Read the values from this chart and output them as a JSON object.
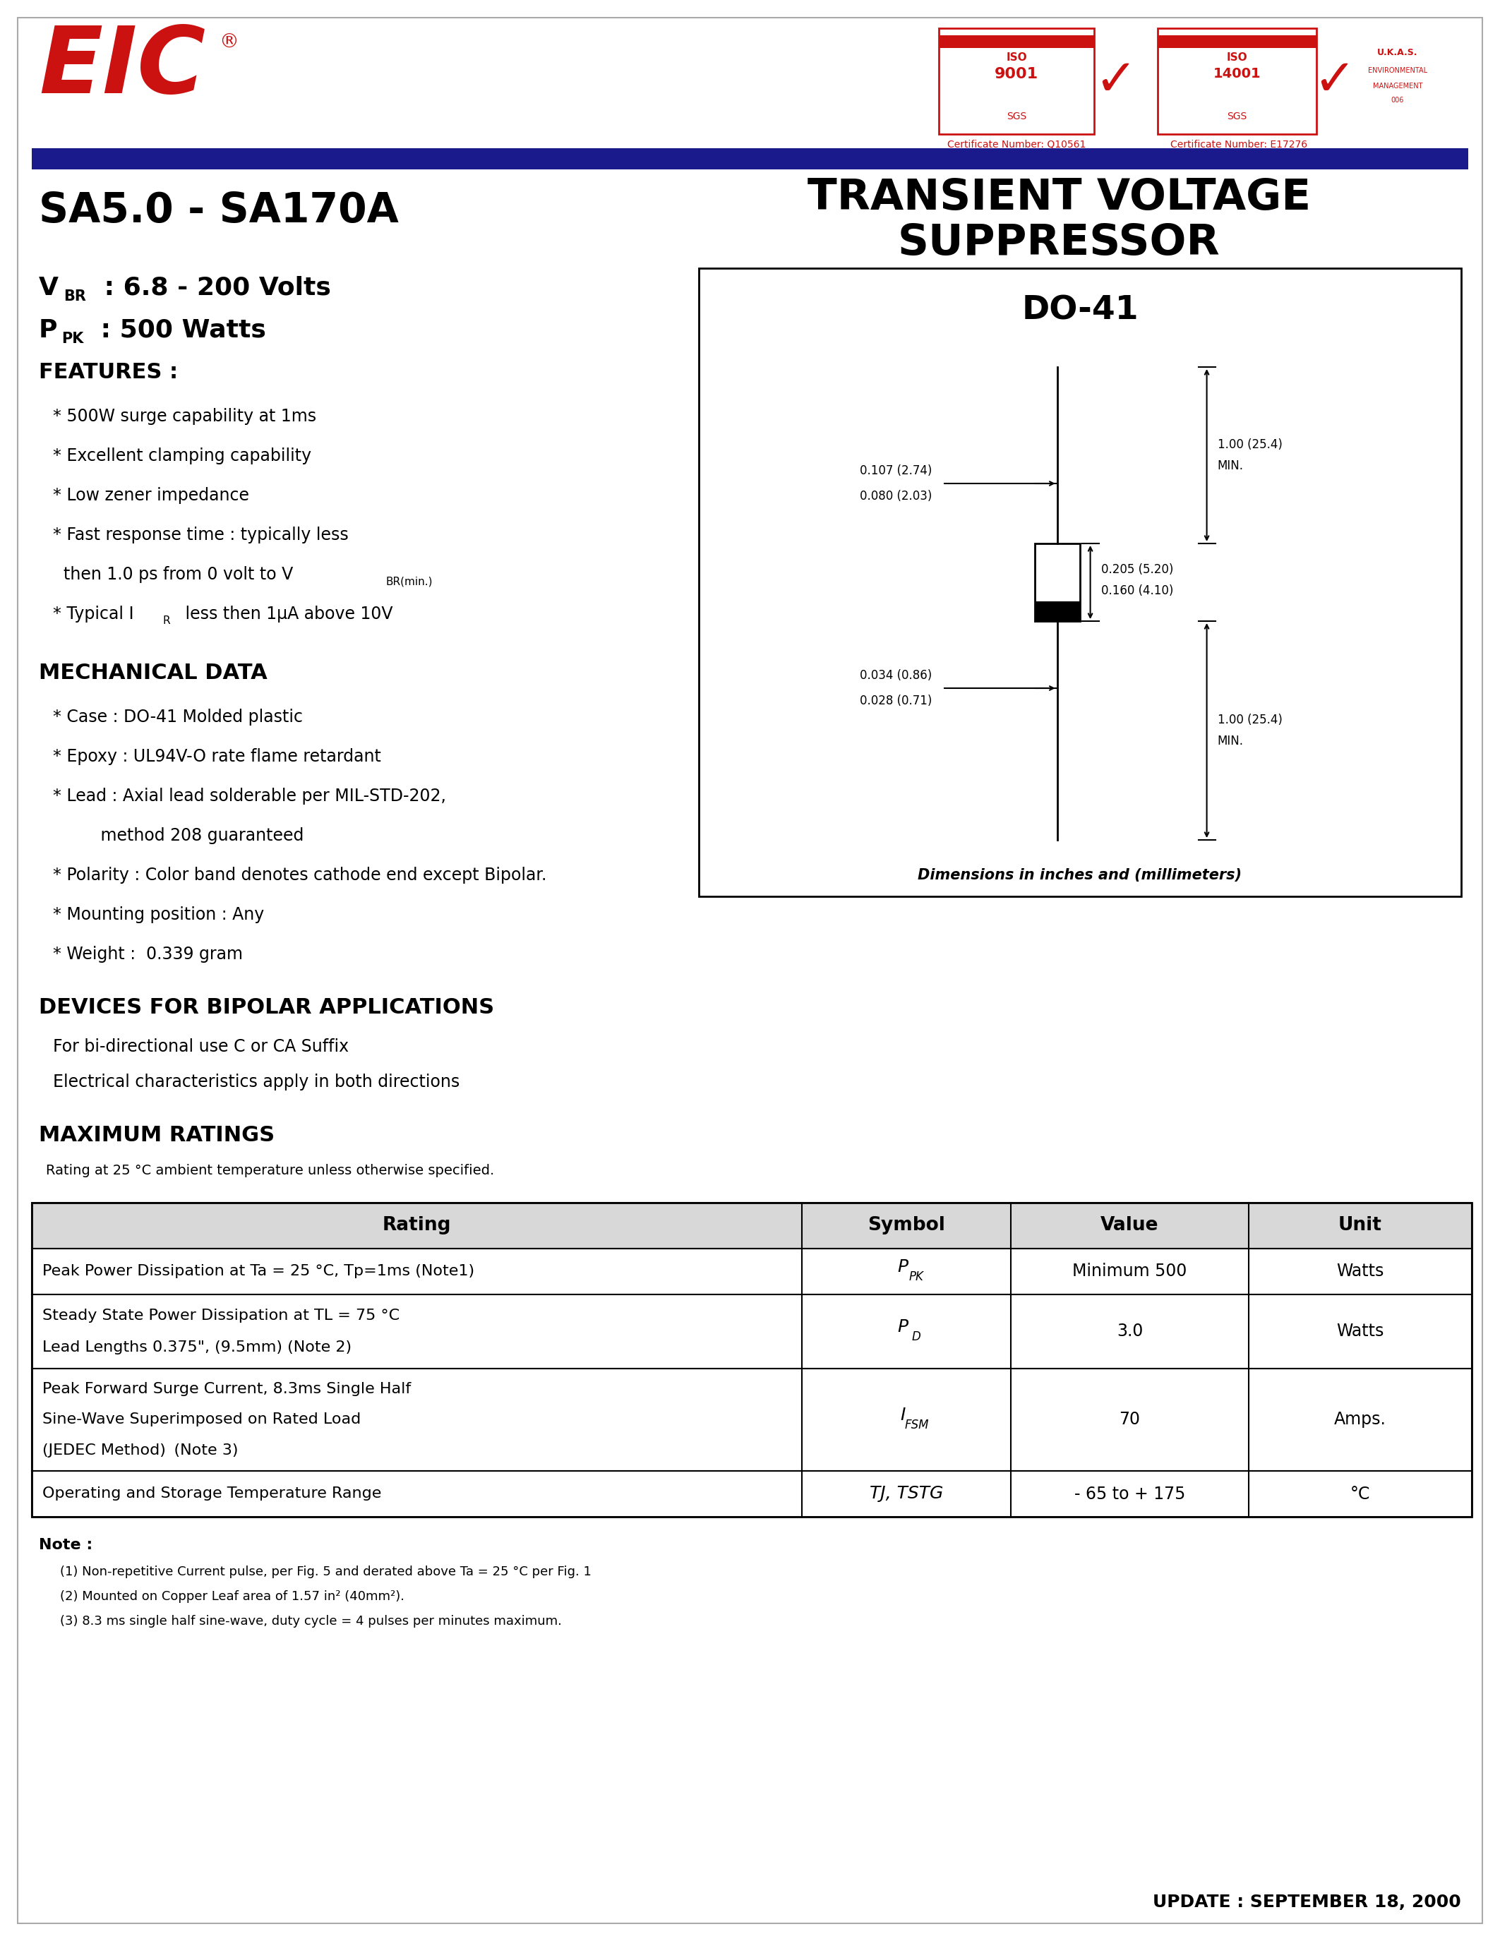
{
  "title": "SA5.0 - SA170A",
  "transient_title_line1": "TRANSIENT VOLTAGE",
  "transient_title_line2": "SUPPRESSOR",
  "vbr_line": "VBR : 6.8 - 200 Volts",
  "ppk_line": "PPK : 500 Watts",
  "features_title": "FEATURES :",
  "mechanical_title": "MECHANICAL DATA",
  "bipolar_title": "DEVICES FOR BIPOLAR APPLICATIONS",
  "bipolar_text1": "For bi-directional use C or CA Suffix",
  "bipolar_text2": "Electrical characteristics apply in both directions",
  "max_ratings_title": "MAXIMUM RATINGS",
  "max_ratings_sub": "Rating at 25 °C ambient temperature unless otherwise specified.",
  "table_headers": [
    "Rating",
    "Symbol",
    "Value",
    "Unit"
  ],
  "note_title": "Note :",
  "notes": [
    "(1) Non-repetitive Current pulse, per Fig. 5 and derated above Ta = 25 °C per Fig. 1",
    "(2) Mounted on Copper Leaf area of 1.57 in² (40mm²).",
    "(3) 8.3 ms single half sine-wave, duty cycle = 4 pulses per minutes maximum."
  ],
  "update_text": "UPDATE : SEPTEMBER 18, 2000",
  "do41_title": "DO-41",
  "dim_caption": "Dimensions in inches and (millimeters)",
  "cert1": "Certificate Number: Q10561",
  "cert2": "Certificate Number: E17276",
  "bg_color": "#ffffff",
  "text_color": "#000000",
  "red_color": "#cc1111",
  "blue_bar_color": "#1a1a8c",
  "table_header_bg": "#d8d8d8"
}
